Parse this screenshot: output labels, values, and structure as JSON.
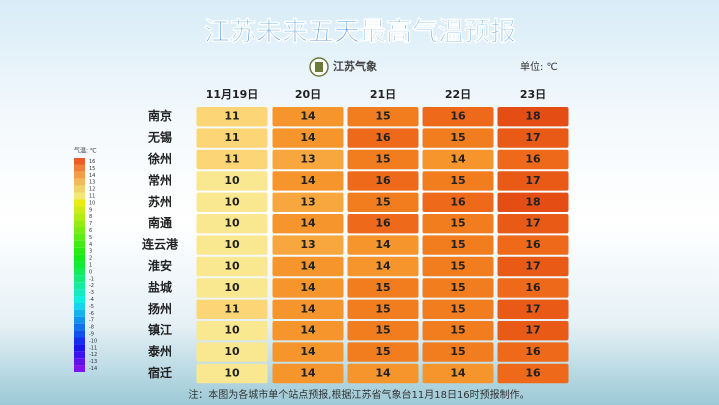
{
  "title": "江苏未来五天最高气温预报",
  "logo": "江苏气象",
  "unit": "单位: ℃",
  "legend": {
    "title": "气温: ℃",
    "labels": [
      16,
      15,
      14,
      13,
      12,
      11,
      10,
      9,
      8,
      7,
      6,
      5,
      4,
      3,
      2,
      1,
      0,
      -1,
      -2,
      -3,
      -4,
      -5,
      -6,
      -7,
      -8,
      -9,
      -10,
      -11,
      -12,
      -13,
      -14
    ]
  },
  "table": {
    "header": [
      "11月19日",
      "20日",
      "21日",
      "22日",
      "23日"
    ],
    "rows": [
      {
        "city": "南京",
        "values": [
          11,
          14,
          15,
          16,
          18
        ]
      },
      {
        "city": "无锡",
        "values": [
          11,
          14,
          16,
          15,
          17
        ]
      },
      {
        "city": "徐州",
        "values": [
          11,
          13,
          15,
          14,
          16
        ]
      },
      {
        "city": "常州",
        "values": [
          10,
          14,
          16,
          15,
          17
        ]
      },
      {
        "city": "苏州",
        "values": [
          10,
          13,
          15,
          16,
          18
        ]
      },
      {
        "city": "南通",
        "values": [
          10,
          14,
          16,
          15,
          17
        ]
      },
      {
        "city": "连云港",
        "values": [
          10,
          13,
          14,
          15,
          16
        ]
      },
      {
        "city": "淮安",
        "values": [
          10,
          14,
          14,
          15,
          17
        ]
      },
      {
        "city": "盐城",
        "values": [
          10,
          14,
          15,
          15,
          16
        ]
      },
      {
        "city": "扬州",
        "values": [
          11,
          14,
          15,
          15,
          17
        ]
      },
      {
        "city": "镇江",
        "values": [
          10,
          14,
          15,
          15,
          17
        ]
      },
      {
        "city": "泰州",
        "values": [
          10,
          14,
          15,
          15,
          16
        ]
      },
      {
        "city": "宿迁",
        "values": [
          10,
          14,
          14,
          14,
          16
        ]
      }
    ]
  },
  "note": "注：本图为各城市单个站点预报,根据江苏省气象台11月18日16时预报制作。"
}
